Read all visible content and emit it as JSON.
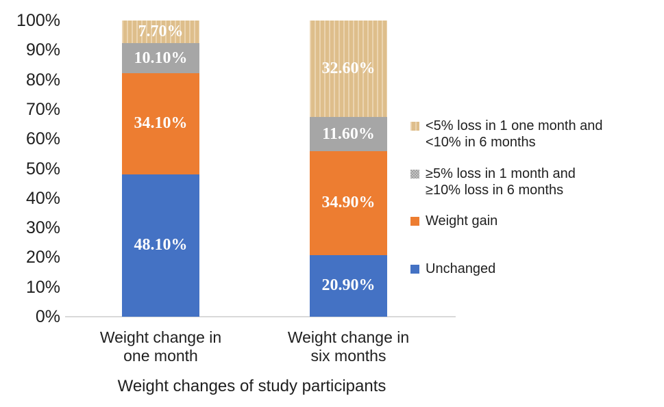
{
  "page": {
    "background": "#ffffff"
  },
  "chart_data": {
    "type": "bar",
    "subtype": "stacked-percent",
    "title": "",
    "xlabel": "Weight changes of study participants",
    "ylabel": "",
    "ylim": [
      0,
      100
    ],
    "grid": false,
    "yticks": [
      "100%",
      "90%",
      "80%",
      "70%",
      "60%",
      "50%",
      "40%",
      "30%",
      "20%",
      "10%",
      "0%"
    ],
    "categories": [
      {
        "lines": [
          "Weight change in",
          "one month"
        ]
      },
      {
        "lines": [
          "Weight change in",
          "six months"
        ]
      }
    ],
    "series": [
      {
        "name": "Unchanged",
        "color": "#4472c4",
        "pattern": "solid",
        "values": [
          48.1,
          20.9
        ],
        "data_labels": [
          "48.10%",
          "20.90%"
        ]
      },
      {
        "name": "Weight gain",
        "color": "#ed7d31",
        "pattern": "solid",
        "values": [
          34.1,
          34.9
        ],
        "data_labels": [
          "34.10%",
          "34.90%"
        ]
      },
      {
        "name": "≥5% loss in 1 month and ≥10% loss in 6 months",
        "color": "#a6a6a6",
        "pattern": "solid",
        "values": [
          10.1,
          11.6
        ],
        "data_labels": [
          "10.10%",
          "11.60%"
        ]
      },
      {
        "name": "<5% loss in 1 one month and <10% in 6 months",
        "color": "#e2c28e",
        "pattern": "vertical-stripes",
        "values": [
          7.7,
          32.6
        ],
        "data_labels": [
          "7.70%",
          "32.60%"
        ]
      }
    ],
    "legend": {
      "position": "right",
      "items": [
        {
          "swatch_color": "#e2c28e",
          "swatch_pattern": "vertical-stripes",
          "lines": [
            "<5% loss in 1 one month and",
            "<10% in 6 months"
          ]
        },
        {
          "swatch_color": "#a6a6a6",
          "swatch_pattern": "checker",
          "lines": [
            "≥5% loss in 1 month and",
            "≥10% loss in 6 months"
          ]
        },
        {
          "swatch_color": "#ed7d31",
          "swatch_pattern": "solid",
          "lines": [
            "Weight gain"
          ]
        },
        {
          "swatch_color": "#4472c4",
          "swatch_pattern": "solid",
          "lines": [
            "Unchanged"
          ]
        }
      ]
    },
    "label_colors": {
      "data_label": "#ffffff",
      "axis_text": "#1f1f1f",
      "axis_line": "#d9d9d9"
    }
  }
}
